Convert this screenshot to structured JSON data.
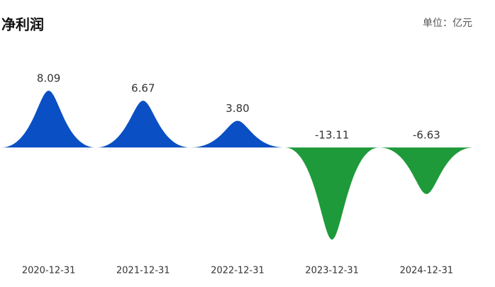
{
  "chart_data": {
    "type": "bar",
    "title": "净利润",
    "unit": "单位：亿元",
    "categories": [
      "2020-12-31",
      "2021-12-31",
      "2022-12-31",
      "2023-12-31",
      "2024-12-31"
    ],
    "values": [
      8.09,
      6.67,
      3.8,
      -13.11,
      -6.63
    ],
    "value_labels": [
      "8.09",
      "6.67",
      "3.80",
      "-13.11",
      "-6.63"
    ],
    "color": "#0a4fc4",
    "negative_color": "#1e9a3a"
  }
}
